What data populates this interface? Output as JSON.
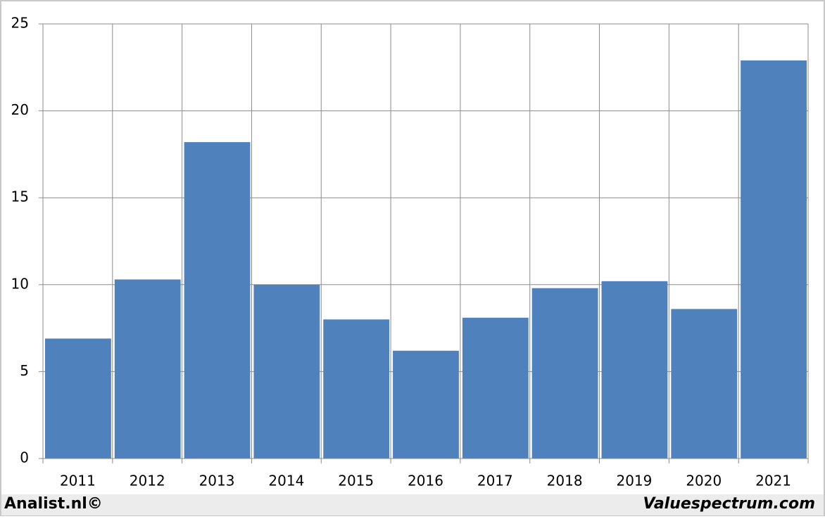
{
  "chart_data": {
    "type": "bar",
    "categories": [
      "2011",
      "2012",
      "2013",
      "2014",
      "2015",
      "2016",
      "2017",
      "2018",
      "2019",
      "2020",
      "2021"
    ],
    "values": [
      6.9,
      10.3,
      18.2,
      10.0,
      8.0,
      6.2,
      8.1,
      9.8,
      10.2,
      8.6,
      22.9
    ],
    "color": "#4f81bd",
    "ylim": [
      0,
      25
    ],
    "yticks": [
      0,
      5,
      10,
      15,
      20,
      25
    ],
    "grid": true
  },
  "footer": {
    "left": "Analist.nl©",
    "right": "Valuespectrum.com"
  }
}
